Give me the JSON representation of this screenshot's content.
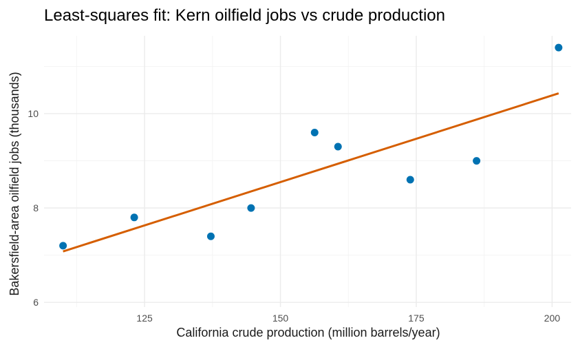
{
  "chart_data": {
    "type": "scatter",
    "title": "Least-squares fit: Kern oilfield jobs vs crude production",
    "xlabel": "California crude production (million barrels/year)",
    "ylabel": "Bakersfield-area oilfield jobs (thousands)",
    "xlim": [
      106.5,
      203.5
    ],
    "ylim": [
      5.9,
      11.65
    ],
    "x_ticks": [
      125,
      150,
      175,
      200
    ],
    "x_tick_labels": [
      "125",
      "150",
      "175",
      "200"
    ],
    "y_ticks": [
      6,
      8,
      10
    ],
    "y_tick_labels": [
      "6",
      "8",
      "10"
    ],
    "grid": true,
    "legend": "none",
    "points": [
      {
        "x": 110.0,
        "y": 7.2
      },
      {
        "x": 123.1,
        "y": 7.8
      },
      {
        "x": 137.2,
        "y": 7.4
      },
      {
        "x": 144.6,
        "y": 8.0
      },
      {
        "x": 156.3,
        "y": 9.6
      },
      {
        "x": 160.6,
        "y": 9.3
      },
      {
        "x": 173.9,
        "y": 8.6
      },
      {
        "x": 186.1,
        "y": 9.0
      },
      {
        "x": 201.2,
        "y": 11.4
      }
    ],
    "fit_line": {
      "x": [
        110.0,
        201.2
      ],
      "y": [
        7.08,
        10.43
      ]
    },
    "colors": {
      "points": "#0072B2",
      "fit": "#D55E00"
    }
  }
}
